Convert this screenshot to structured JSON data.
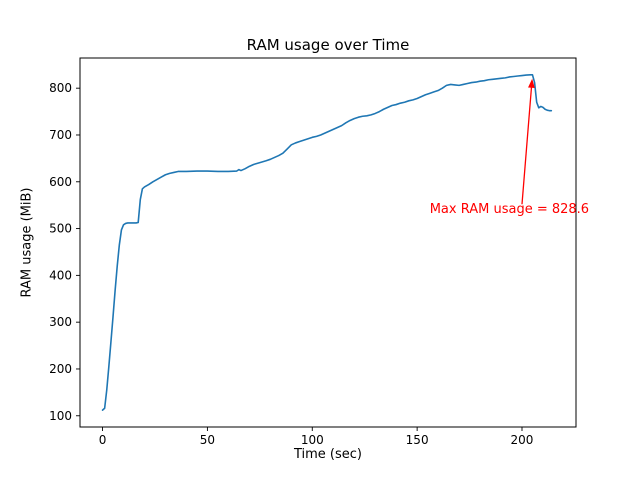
{
  "chart_data": {
    "type": "line",
    "title": "RAM usage over Time",
    "xlabel": "Time (sec)",
    "ylabel": "RAM usage (MiB)",
    "xlim": [
      -10.75,
      225.75
    ],
    "ylim": [
      76,
      864.5
    ],
    "xticks": [
      0,
      50,
      100,
      150,
      200
    ],
    "yticks": [
      100,
      200,
      300,
      400,
      500,
      600,
      700,
      800
    ],
    "grid": false,
    "legend": null,
    "line_color": "#1f77b4",
    "series": [
      {
        "name": "RAM usage",
        "points": [
          [
            0,
            112
          ],
          [
            1,
            116
          ],
          [
            2,
            155
          ],
          [
            3,
            205
          ],
          [
            4,
            258
          ],
          [
            5,
            312
          ],
          [
            6,
            368
          ],
          [
            7,
            420
          ],
          [
            8,
            465
          ],
          [
            9,
            497
          ],
          [
            10,
            508
          ],
          [
            11,
            511
          ],
          [
            12,
            512
          ],
          [
            16,
            512
          ],
          [
            17,
            513
          ],
          [
            18,
            562
          ],
          [
            19,
            585
          ],
          [
            20,
            589
          ],
          [
            22,
            594
          ],
          [
            24,
            600
          ],
          [
            26,
            605
          ],
          [
            28,
            610
          ],
          [
            30,
            615
          ],
          [
            32,
            618
          ],
          [
            34,
            620
          ],
          [
            36,
            622
          ],
          [
            40,
            622
          ],
          [
            45,
            623
          ],
          [
            50,
            623
          ],
          [
            55,
            622
          ],
          [
            60,
            622
          ],
          [
            64,
            623
          ],
          [
            65,
            626
          ],
          [
            66,
            624
          ],
          [
            68,
            628
          ],
          [
            70,
            633
          ],
          [
            72,
            637
          ],
          [
            75,
            641
          ],
          [
            78,
            645
          ],
          [
            80,
            648
          ],
          [
            82,
            652
          ],
          [
            84,
            656
          ],
          [
            86,
            661
          ],
          [
            88,
            670
          ],
          [
            90,
            679
          ],
          [
            92,
            683
          ],
          [
            94,
            686
          ],
          [
            96,
            689
          ],
          [
            98,
            692
          ],
          [
            100,
            695
          ],
          [
            102,
            697
          ],
          [
            104,
            700
          ],
          [
            106,
            704
          ],
          [
            108,
            708
          ],
          [
            110,
            712
          ],
          [
            112,
            716
          ],
          [
            114,
            720
          ],
          [
            116,
            726
          ],
          [
            118,
            731
          ],
          [
            120,
            735
          ],
          [
            122,
            738
          ],
          [
            124,
            740
          ],
          [
            126,
            741
          ],
          [
            128,
            743
          ],
          [
            130,
            746
          ],
          [
            132,
            750
          ],
          [
            134,
            755
          ],
          [
            136,
            759
          ],
          [
            138,
            763
          ],
          [
            140,
            765
          ],
          [
            142,
            768
          ],
          [
            144,
            770
          ],
          [
            146,
            773
          ],
          [
            148,
            775
          ],
          [
            150,
            778
          ],
          [
            152,
            782
          ],
          [
            154,
            786
          ],
          [
            156,
            789
          ],
          [
            158,
            792
          ],
          [
            160,
            795
          ],
          [
            162,
            800
          ],
          [
            164,
            806
          ],
          [
            166,
            808
          ],
          [
            168,
            807
          ],
          [
            170,
            806
          ],
          [
            172,
            808
          ],
          [
            174,
            810
          ],
          [
            176,
            812
          ],
          [
            178,
            813
          ],
          [
            180,
            815
          ],
          [
            182,
            816
          ],
          [
            184,
            818
          ],
          [
            186,
            819
          ],
          [
            188,
            820
          ],
          [
            190,
            821
          ],
          [
            192,
            822
          ],
          [
            194,
            824
          ],
          [
            196,
            825
          ],
          [
            198,
            826
          ],
          [
            200,
            827
          ],
          [
            202,
            828
          ],
          [
            204,
            828.5
          ],
          [
            205,
            828.6
          ],
          [
            206,
            812
          ],
          [
            207,
            770
          ],
          [
            208,
            758
          ],
          [
            209,
            761
          ],
          [
            210,
            759
          ],
          [
            211,
            755
          ],
          [
            212,
            753
          ],
          [
            213,
            752
          ],
          [
            214,
            752
          ]
        ]
      }
    ],
    "annotation": {
      "text": "Max RAM usage = 828.6",
      "color": "#ff0000",
      "xy": [
        205,
        828.6
      ],
      "text_pos": [
        156,
        533
      ],
      "arrow_tail": [
        200,
        552
      ]
    },
    "max_value": 828.6
  }
}
